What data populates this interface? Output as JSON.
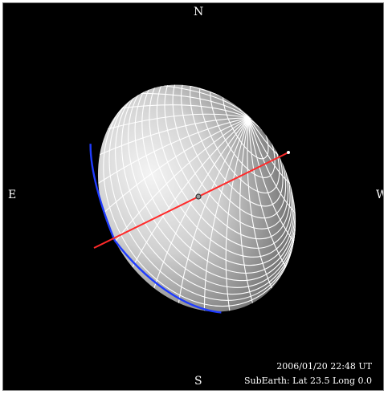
{
  "compass": {
    "north": "N",
    "south": "S",
    "east": "E",
    "west": "W"
  },
  "info": {
    "datetime": "2006/01/20 22:48 UT",
    "subearth": "SubEarth: Lat 23.5 Long 0.0"
  },
  "colors": {
    "background": "#000000",
    "grid": "#ffffff",
    "axis": "#ff2a2a",
    "terminator": "#1f3cff",
    "label": "#ffffff"
  }
}
